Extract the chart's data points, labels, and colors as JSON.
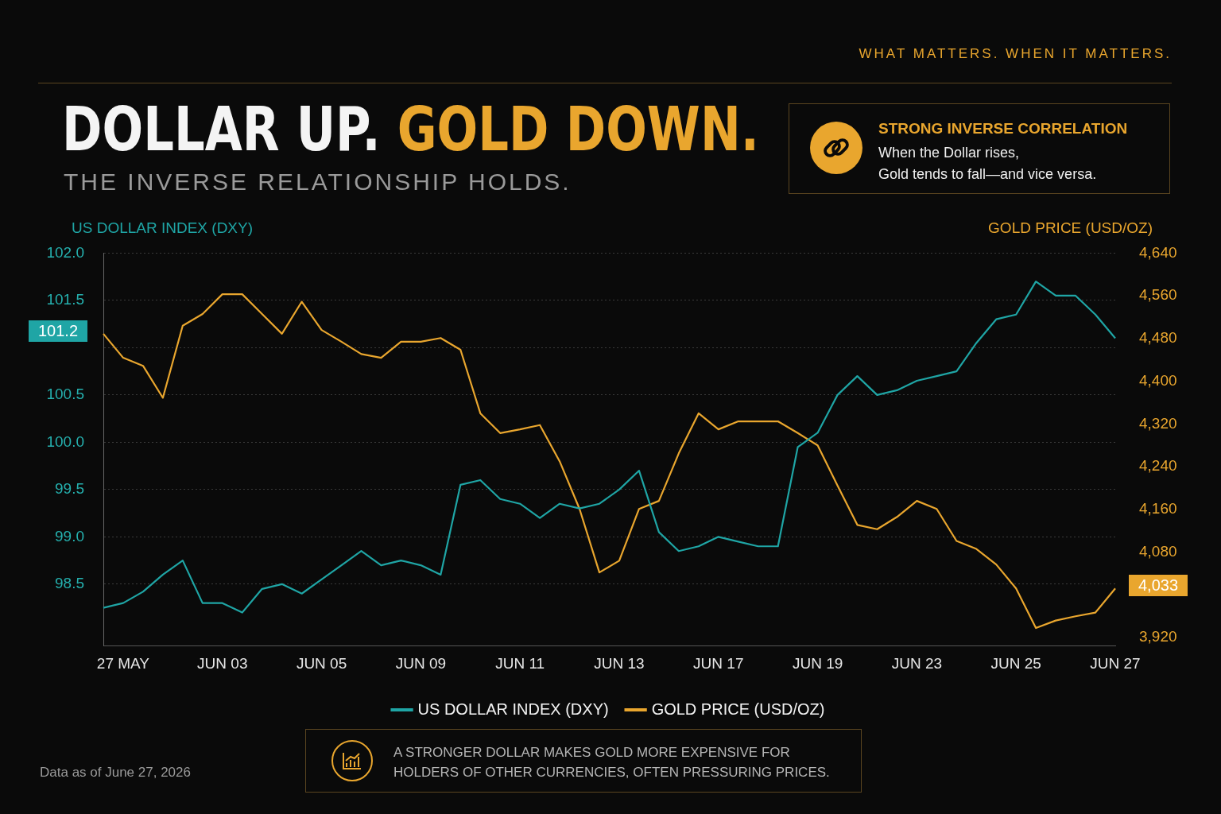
{
  "chart_data": {
    "type": "line",
    "title": "DOLLAR UP. GOLD DOWN.",
    "subtitle": "THE INVERSE RELATIONSHIP HOLDS.",
    "ylabel": "US DOLLAR INDEX (DXY)",
    "y2label": "GOLD PRICE (USD/OZ)",
    "categories": [
      null,
      "27 MAY",
      null,
      null,
      null,
      null,
      "JUN 03",
      null,
      null,
      null,
      null,
      "JUN 05",
      null,
      null,
      null,
      null,
      "JUN 09",
      null,
      null,
      null,
      null,
      "JUN 11",
      null,
      null,
      null,
      null,
      "JUN 13",
      null,
      null,
      null,
      null,
      "JUN 17",
      null,
      null,
      null,
      null,
      "JUN 19",
      null,
      null,
      null,
      null,
      "JUN 23",
      null,
      null,
      null,
      null,
      "JUN 25",
      null,
      null,
      null,
      null,
      "JUN 27"
    ],
    "series": [
      {
        "name": "US DOLLAR INDEX (DXY)",
        "color": "#1fa5a5",
        "values": [
          98.25,
          98.3,
          98.42,
          98.6,
          98.75,
          98.3,
          98.3,
          98.2,
          98.45,
          98.5,
          98.4,
          98.55,
          98.7,
          98.85,
          98.7,
          98.75,
          98.7,
          98.6,
          99.55,
          99.6,
          99.4,
          99.35,
          99.2,
          99.35,
          99.3,
          99.35,
          99.5,
          99.7,
          99.05,
          98.85,
          98.9,
          99.0,
          98.95,
          98.9,
          98.9,
          99.95,
          100.1,
          100.5,
          100.7,
          100.5,
          100.55,
          100.65,
          100.7,
          100.75,
          101.05,
          101.3,
          101.35,
          101.7,
          101.55,
          101.55,
          101.35,
          101.1
        ]
      },
      {
        "name": "GOLD PRICE (USD/OZ)",
        "color": "#e9a62e",
        "axis": "y2",
        "values": [
          4489,
          4444,
          4429,
          4369,
          4504,
          4526,
          4563,
          4563,
          4526,
          4489,
          4549,
          4496,
          4474,
          4451,
          4444,
          4474,
          4474,
          4481,
          4459,
          4340,
          4303,
          4310,
          4318,
          4250,
          4161,
          4042,
          4064,
          4161,
          4176,
          4265,
          4340,
          4310,
          4325,
          4325,
          4325,
          4303,
          4280,
          4205,
          4131,
          4123,
          4146,
          4176,
          4161,
          4101,
          4086,
          4057,
          4012,
          3938,
          3952,
          3960,
          3967,
          4012
        ]
      }
    ],
    "ylim": [
      97.85,
      102.0
    ],
    "yticks": [
      98.5,
      {
        "value": 99,
        "label": "99.0"
      },
      99.5,
      {
        "value": 100,
        "label": "100.0"
      },
      100.5,
      {
        "value": 101,
        "label": null
      },
      101.5,
      {
        "value": 102,
        "label": "102.0"
      }
    ],
    "y2lim": [
      3905,
      4640
    ],
    "y2ticks": [
      {
        "value": 3920,
        "label": "3,920"
      },
      {
        "value": 4080,
        "label": "4,080"
      },
      {
        "value": 4160,
        "label": "4,160"
      },
      {
        "value": 4240,
        "label": "4,240"
      },
      {
        "value": 4320,
        "label": "4,320"
      },
      {
        "value": 4400,
        "label": "4,400"
      },
      {
        "value": 4480,
        "label": "4,480"
      },
      {
        "value": 4560,
        "label": "4,560"
      },
      {
        "value": 4640,
        "label": "4,640"
      }
    ],
    "grid": "y",
    "legend": "bottom",
    "marker": "none",
    "line_style": "solid",
    "annotations": [
      "WHAT MATTERS. WHEN IT MATTERS.",
      "STRONG INVERSE CORRELATION",
      "When the Dollar rises,\nGold tends to fall—and vice versa.",
      "Data as of June 27, 2026",
      "A STRONGER DOLLAR MAKES GOLD MORE EXPENSIVE FOR\nHOLDERS OF OTHER CURRENCIES, OFTEN PRESSURING PRICES.",
      "101.2",
      "4,033"
    ]
  }
}
